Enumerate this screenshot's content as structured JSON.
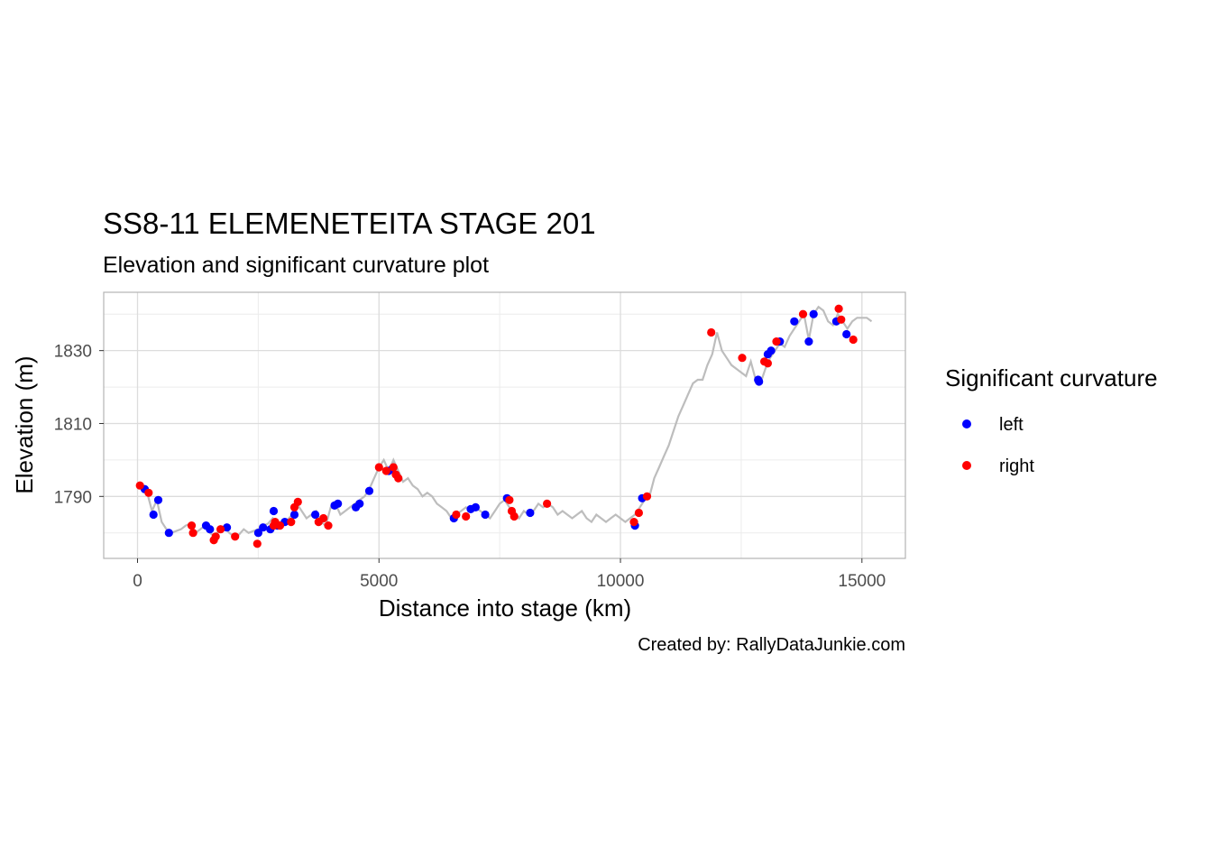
{
  "chart_data": {
    "type": "scatter",
    "title": "SS8-11 ELEMENETEITA STAGE 201",
    "subtitle": "Elevation and significant curvature plot",
    "xlabel": "Distance into stage (km)",
    "ylabel": "Elevation (m)",
    "caption": "Created by: RallyDataJunkie.com",
    "xlim": [
      -700,
      15900
    ],
    "ylim": [
      1773,
      1846
    ],
    "x_ticks": [
      0,
      5000,
      10000,
      15000
    ],
    "x_tick_labels": [
      "0",
      "5000",
      "10000",
      "15000"
    ],
    "y_ticks": [
      1790,
      1810,
      1830
    ],
    "y_tick_labels": [
      "1790",
      "1810",
      "1830"
    ],
    "grid": true,
    "legend": {
      "title": "Significant curvature",
      "placement": "right",
      "entries": [
        {
          "label": "left",
          "color": "#0000ff"
        },
        {
          "label": "right",
          "color": "#ff0000"
        }
      ]
    },
    "line_color": "#bdbdbd",
    "elevation_profile": {
      "x": [
        0,
        100,
        200,
        300,
        400,
        500,
        600,
        700,
        800,
        900,
        1000,
        1100,
        1200,
        1300,
        1400,
        1500,
        1600,
        1700,
        1800,
        1900,
        2000,
        2100,
        2200,
        2300,
        2400,
        2500,
        2600,
        2700,
        2800,
        2900,
        3000,
        3100,
        3200,
        3300,
        3400,
        3500,
        3600,
        3700,
        3800,
        3900,
        4000,
        4100,
        4200,
        4300,
        4400,
        4500,
        4600,
        4700,
        4800,
        4900,
        5000,
        5100,
        5200,
        5300,
        5400,
        5500,
        5600,
        5700,
        5800,
        5900,
        6000,
        6100,
        6200,
        6300,
        6400,
        6500,
        6600,
        6700,
        6800,
        6900,
        7000,
        7100,
        7200,
        7300,
        7400,
        7500,
        7600,
        7700,
        7800,
        7900,
        8000,
        8100,
        8200,
        8300,
        8400,
        8500,
        8600,
        8700,
        8800,
        8900,
        9000,
        9100,
        9200,
        9300,
        9400,
        9500,
        9600,
        9700,
        9800,
        9900,
        10000,
        10100,
        10200,
        10300,
        10400,
        10500,
        10600,
        10700,
        10800,
        10900,
        11000,
        11100,
        11200,
        11300,
        11400,
        11500,
        11600,
        11700,
        11800,
        11900,
        12000,
        12100,
        12200,
        12300,
        12400,
        12500,
        12600,
        12700,
        12800,
        12900,
        13000,
        13100,
        13200,
        13300,
        13400,
        13500,
        13600,
        13700,
        13800,
        13900,
        14000,
        14100,
        14200,
        14300,
        14400,
        14500,
        14600,
        14700,
        14800,
        14900,
        15000,
        15100,
        15200
      ],
      "y": [
        1793,
        1792.5,
        1791,
        1786,
        1789,
        1783,
        1781,
        1780,
        1780.5,
        1781,
        1782,
        1782.5,
        1780,
        1781,
        1782,
        1780,
        1779,
        1781,
        1781.5,
        1780,
        1779,
        1779.5,
        1781,
        1780,
        1780.5,
        1781,
        1782,
        1782.5,
        1784,
        1782,
        1783,
        1783.5,
        1785,
        1788,
        1786,
        1784,
        1785,
        1786,
        1783,
        1782,
        1787,
        1788,
        1785,
        1786,
        1787,
        1788,
        1789,
        1790,
        1792,
        1795,
        1798,
        1800,
        1797,
        1800,
        1797,
        1794,
        1795,
        1793,
        1792,
        1790,
        1791,
        1790,
        1788,
        1787,
        1786,
        1784,
        1785,
        1786,
        1787,
        1786,
        1787,
        1786,
        1785,
        1784,
        1786,
        1788,
        1789,
        1787,
        1786,
        1784,
        1786,
        1785,
        1786,
        1788,
        1787,
        1788,
        1787,
        1785,
        1786,
        1785,
        1784,
        1785,
        1786,
        1784,
        1783,
        1785,
        1784,
        1783,
        1784,
        1785,
        1784,
        1783,
        1784,
        1785,
        1787,
        1789,
        1790,
        1795,
        1798,
        1801,
        1804,
        1808,
        1812,
        1815,
        1818,
        1821,
        1822,
        1822,
        1826,
        1829,
        1835,
        1830,
        1828,
        1826,
        1825,
        1824,
        1823,
        1827,
        1822,
        1821,
        1825,
        1828,
        1830,
        1832,
        1831,
        1834,
        1836,
        1838,
        1840,
        1833,
        1840,
        1842,
        1841,
        1838,
        1837,
        1840,
        1838,
        1836,
        1838,
        1839,
        1839,
        1839,
        1838
      ]
    },
    "series": [
      {
        "name": "left",
        "color": "#0000ff",
        "x": [
          150,
          330,
          430,
          650,
          1420,
          1500,
          1850,
          2500,
          2600,
          2750,
          2820,
          2900,
          3050,
          3250,
          3680,
          4080,
          4150,
          4520,
          4600,
          4800,
          5200,
          5270,
          6550,
          6900,
          7000,
          7200,
          7650,
          8130,
          10300,
          10450,
          12850,
          12870,
          13050,
          13120,
          13300,
          13600,
          13900,
          14000,
          14470,
          14680
        ],
        "y": [
          1792,
          1785,
          1789,
          1780,
          1782,
          1781,
          1781.5,
          1780,
          1781.5,
          1781,
          1786,
          1782,
          1783,
          1785,
          1785,
          1787.5,
          1788,
          1787,
          1788,
          1791.5,
          1797,
          1797.5,
          1784,
          1786.5,
          1787,
          1785,
          1789.5,
          1785.5,
          1782,
          1789.5,
          1822,
          1821.5,
          1829,
          1830,
          1832.5,
          1838,
          1832.5,
          1840,
          1838,
          1834.5
        ]
      },
      {
        "name": "right",
        "color": "#ff0000",
        "x": [
          50,
          230,
          1120,
          1150,
          1580,
          1620,
          1720,
          2020,
          2480,
          2820,
          2850,
          2950,
          3180,
          3250,
          3320,
          3750,
          3850,
          3950,
          5000,
          5150,
          5300,
          5350,
          5400,
          6600,
          6800,
          7700,
          7750,
          7800,
          8480,
          10280,
          10380,
          10550,
          11880,
          12520,
          12980,
          13050,
          13230,
          13780,
          14520,
          14570,
          14820
        ],
        "y": [
          1793,
          1791,
          1782,
          1780,
          1778,
          1779,
          1781,
          1779,
          1777,
          1782,
          1783,
          1782,
          1783,
          1787,
          1788.5,
          1783,
          1784,
          1782,
          1798,
          1797,
          1798,
          1796,
          1795,
          1785,
          1784.5,
          1789,
          1786,
          1784.5,
          1788,
          1783,
          1785.5,
          1790,
          1835,
          1828,
          1827,
          1826.5,
          1832.5,
          1840,
          1841.5,
          1838.5,
          1833
        ]
      }
    ]
  }
}
